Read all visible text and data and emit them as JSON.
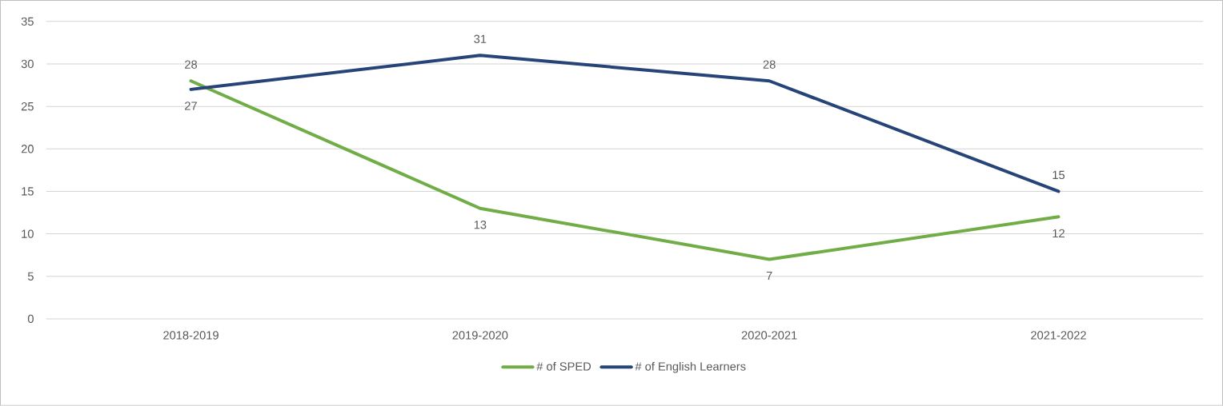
{
  "chart_data": {
    "type": "line",
    "categories": [
      "2018-2019",
      "2019-2020",
      "2020-2021",
      "2021-2022"
    ],
    "series": [
      {
        "name": "# of SPED",
        "color": "#70ad47",
        "values": [
          28,
          13,
          7,
          12
        ]
      },
      {
        "name": "# of English Learners",
        "color": "#264478",
        "values": [
          27,
          31,
          28,
          15
        ]
      }
    ],
    "ylim": [
      0,
      35
    ],
    "yticks": [
      0,
      5,
      10,
      15,
      20,
      25,
      30,
      35
    ],
    "grid": "y",
    "legend": "bottom",
    "data_labels": true,
    "marker": "none",
    "line_style": "solid"
  }
}
